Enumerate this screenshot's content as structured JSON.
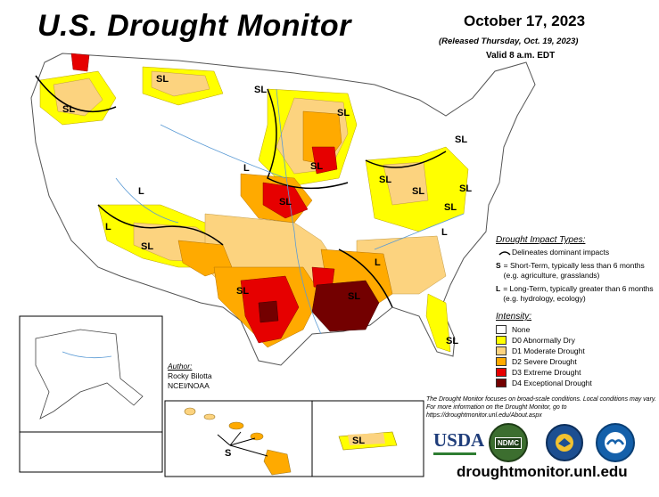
{
  "header": {
    "title": "U.S. Drought Monitor",
    "date": "October 17, 2023",
    "released": "(Released Thursday, Oct. 19, 2023)",
    "valid": "Valid 8 a.m. EDT"
  },
  "impact_types": {
    "heading": "Drought Impact Types:",
    "delineates": "Delineates dominant impacts",
    "s_key": "S",
    "s_text": "= Short-Term, typically less than 6 months (e.g. agriculture, grasslands)",
    "l_key": "L",
    "l_text": "= Long-Term, typically greater than 6 months (e.g. hydrology, ecology)"
  },
  "intensity": {
    "heading": "Intensity:",
    "levels": [
      {
        "label": "None",
        "color": "#ffffff"
      },
      {
        "label": "D0 Abnormally Dry",
        "color": "#ffff00"
      },
      {
        "label": "D1 Moderate Drought",
        "color": "#fcd37f"
      },
      {
        "label": "D2 Severe Drought",
        "color": "#ffaa00"
      },
      {
        "label": "D3 Extreme Drought",
        "color": "#e60000"
      },
      {
        "label": "D4 Exceptional Drought",
        "color": "#730000"
      }
    ]
  },
  "author": {
    "heading": "Author:",
    "name": "Rocky Bilotta",
    "org": "NCEI/NOAA"
  },
  "note": "The Drought Monitor focuses on broad-scale conditions. Local conditions may vary. For more information on the Drought Monitor, go to https://droughtmonitor.unl.edu/About.aspx",
  "map_labels": {
    "sl": "SL",
    "l": "L",
    "s": "S"
  },
  "logos": {
    "usda": "USDA",
    "ndmc": "NDMC",
    "doc": "DOC",
    "noaa": "NOAA"
  },
  "url": "droughtmonitor.unl.edu"
}
